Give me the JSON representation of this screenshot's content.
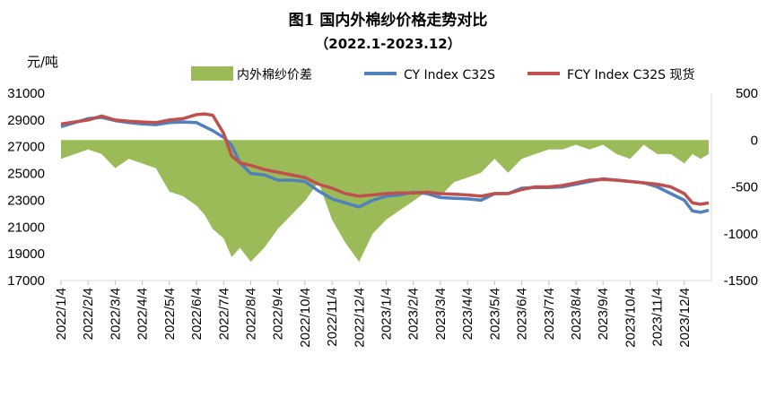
{
  "chart_data": {
    "type": "line",
    "title": "图1 国内外棉纱价格走势对比",
    "subtitle": "（2022.1-2023.12）",
    "ylabel_left": "元/吨",
    "y_left_lim": [
      17000,
      31000
    ],
    "y_left_ticks": [
      "31000",
      "29000",
      "27000",
      "25000",
      "23000",
      "21000",
      "19000",
      "17000"
    ],
    "y_right_lim": [
      -1500,
      500
    ],
    "y_right_ticks": [
      "500",
      "0",
      "-500",
      "-1000",
      "-1500"
    ],
    "x_ticks": [
      "2022/1/4",
      "2022/2/4",
      "2022/3/4",
      "2022/4/4",
      "2022/5/4",
      "2022/6/4",
      "2022/7/4",
      "2022/8/4",
      "2022/9/4",
      "2022/10/4",
      "2022/11/4",
      "2022/12/4",
      "2023/1/4",
      "2023/2/4",
      "2023/3/4",
      "2023/4/4",
      "2023/5/4",
      "2023/6/4",
      "2023/7/4",
      "2023/8/4",
      "2023/9/4",
      "2023/10/4",
      "2023/11/4",
      "2023/12/4"
    ],
    "legend_position": "top",
    "x_months": [
      0,
      1,
      1.5,
      2,
      2.5,
      3,
      3.5,
      4,
      4.5,
      5,
      5.3,
      5.6,
      6,
      6.3,
      6.6,
      7,
      7.5,
      8,
      8.5,
      9,
      9.5,
      10,
      10.5,
      11,
      11.5,
      12,
      12.5,
      13,
      13.5,
      14,
      14.5,
      15,
      15.5,
      16,
      16.5,
      17,
      17.5,
      18,
      18.5,
      19,
      19.5,
      20,
      20.5,
      21,
      21.5,
      22,
      22.5,
      23,
      23.3,
      23.6,
      23.9
    ],
    "series": [
      {
        "name": "CY Index C32S",
        "axis": "left",
        "color": "#4F81BD",
        "values": [
          28500,
          29100,
          29200,
          28950,
          28800,
          28700,
          28650,
          28800,
          28850,
          28800,
          28500,
          28200,
          27700,
          27100,
          25800,
          25000,
          24900,
          24500,
          24500,
          24400,
          23700,
          23100,
          22800,
          22500,
          23000,
          23300,
          23400,
          23600,
          23500,
          23200,
          23150,
          23100,
          23000,
          23500,
          23500,
          23900,
          23950,
          23950,
          24000,
          24200,
          24400,
          24600,
          24500,
          24400,
          24300,
          24000,
          23500,
          23000,
          22200,
          22100,
          22250
        ]
      },
      {
        "name": "FCY Index C32S 现货",
        "axis": "left",
        "color": "#C0504D",
        "values": [
          28700,
          29000,
          29300,
          29000,
          28900,
          28850,
          28800,
          29000,
          29100,
          29400,
          29450,
          29350,
          28000,
          26300,
          25800,
          25600,
          25300,
          25100,
          24900,
          24700,
          24200,
          23900,
          23500,
          23300,
          23400,
          23500,
          23550,
          23550,
          23600,
          23500,
          23450,
          23400,
          23300,
          23500,
          23500,
          23800,
          24000,
          24000,
          24100,
          24300,
          24500,
          24550,
          24500,
          24400,
          24300,
          24200,
          24000,
          23500,
          22800,
          22700,
          22800
        ]
      },
      {
        "name": "内外棉纱价差",
        "axis": "right",
        "color": "#9BBB59",
        "values": [
          -200,
          -100,
          -150,
          -300,
          -200,
          -250,
          -300,
          -550,
          -600,
          -700,
          -800,
          -950,
          -1050,
          -1250,
          -1150,
          -1300,
          -1150,
          -950,
          -800,
          -650,
          -450,
          -850,
          -1100,
          -1300,
          -1000,
          -850,
          -750,
          -650,
          -550,
          -600,
          -450,
          -400,
          -350,
          -200,
          -350,
          -200,
          -150,
          -100,
          -100,
          -50,
          -100,
          -50,
          -150,
          -200,
          -50,
          -150,
          -150,
          -250,
          -150,
          -200,
          -150
        ]
      }
    ]
  }
}
